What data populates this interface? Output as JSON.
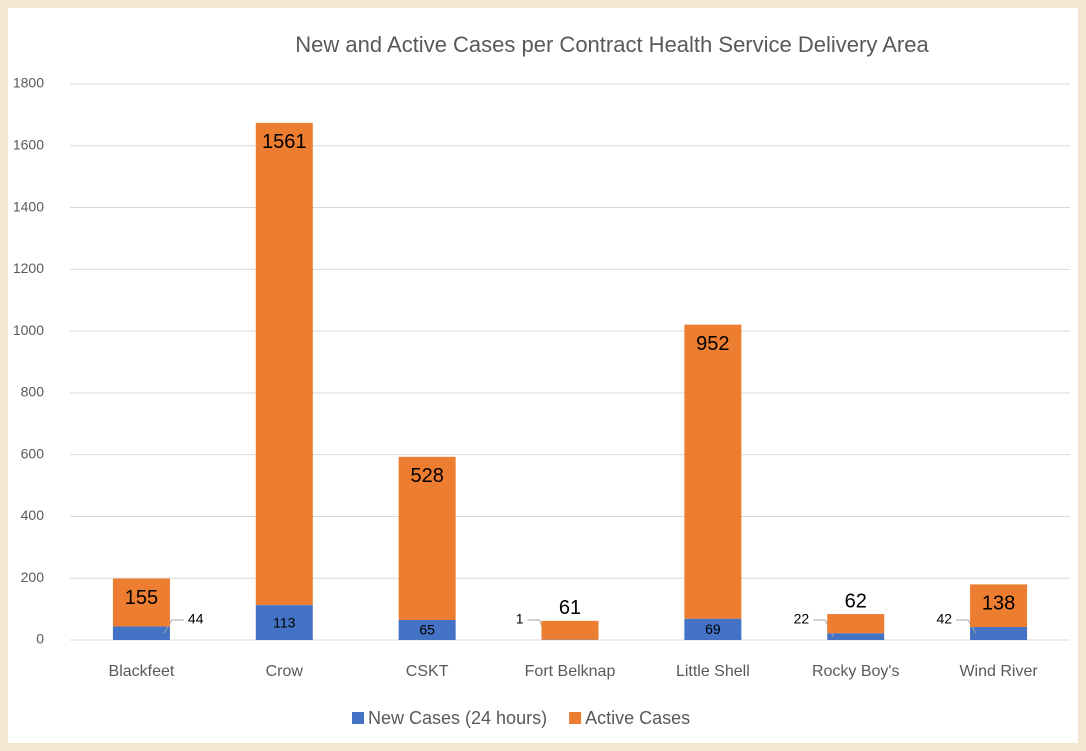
{
  "chart_data": {
    "type": "stacked_bar",
    "title": "New and Active Cases per Contract Health Service Delivery Area",
    "categories": [
      "Blackfeet",
      "Crow",
      "CSKT",
      "Fort Belknap",
      "Little Shell",
      "Rocky Boy's",
      "Wind River"
    ],
    "series": [
      {
        "name": "New Cases (24 hours)",
        "color": "#4472c4",
        "values": [
          44,
          113,
          65,
          1,
          69,
          22,
          42
        ]
      },
      {
        "name": "Active Cases",
        "color": "#ed7d31",
        "values": [
          155,
          1561,
          528,
          61,
          952,
          62,
          138
        ]
      }
    ],
    "ylim": [
      0,
      1800
    ],
    "yticks": [
      0,
      200,
      400,
      600,
      800,
      1000,
      1200,
      1400,
      1600,
      1800
    ],
    "grid": true,
    "legend": "bottom"
  }
}
